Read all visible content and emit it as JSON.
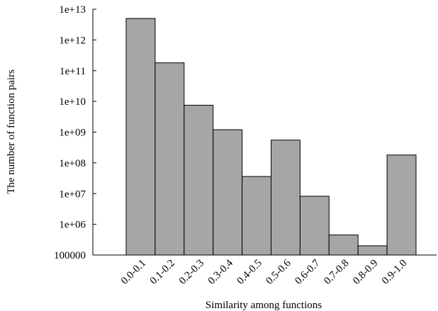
{
  "chart_data": {
    "type": "bar",
    "title": "",
    "xlabel": "Similarity among functions",
    "ylabel": "The number of function pairs",
    "yscale": "log",
    "ylim": [
      100000,
      10000000000000
    ],
    "yticks": [
      100000,
      1000000,
      10000000,
      100000000,
      1000000000,
      10000000000,
      100000000000,
      1000000000000,
      10000000000000
    ],
    "ytick_labels": [
      "100000",
      "1e+06",
      "1e+07",
      "1e+08",
      "1e+09",
      "1e+10",
      "1e+11",
      "1e+12",
      "1e+13"
    ],
    "categories": [
      "0.0-0.1",
      "0.1-0.2",
      "0.2-0.3",
      "0.3-0.4",
      "0.4-0.5",
      "0.5-0.6",
      "0.6-0.7",
      "0.7-0.8",
      "0.8-0.9",
      "0.9-1.0"
    ],
    "values": [
      5000000000000,
      180000000000,
      7500000000,
      1200000000,
      36000000,
      550000000,
      8200000,
      450000,
      200000,
      180000000
    ],
    "bar_color": "#a6a6a6",
    "edge_color": "#000000",
    "grid": false,
    "legend": "none"
  }
}
